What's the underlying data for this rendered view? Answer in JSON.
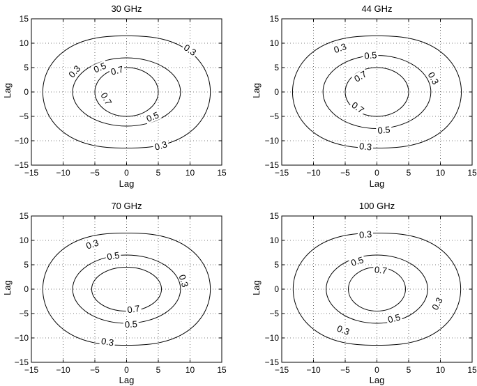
{
  "chart_data": [
    {
      "type": "contour",
      "title": "30 GHz",
      "xlabel": "Lag",
      "ylabel": "Lag",
      "xlim": [
        -15,
        15
      ],
      "ylim": [
        -15,
        15
      ],
      "xticks": [
        -15,
        -10,
        -5,
        0,
        5,
        10,
        15
      ],
      "yticks": [
        -15,
        -10,
        -5,
        0,
        5,
        10,
        15
      ],
      "grid": true,
      "levels": [
        {
          "level": 0.3,
          "label": "0.3",
          "rx": 13.2,
          "ry": 11.5,
          "label_positions": [
            [
              -8.2,
              4.2
            ],
            [
              5.4,
              -11.0
            ],
            [
              10.0,
              8.6
            ]
          ]
        },
        {
          "level": 0.5,
          "label": "0.5",
          "rx": 8.5,
          "ry": 7.0,
          "label_positions": [
            [
              -4.2,
              5.0
            ],
            [
              4.1,
              -5.1
            ]
          ]
        },
        {
          "level": 0.7,
          "label": "0.7",
          "rx": 5.0,
          "ry": 5.0,
          "label_positions": [
            [
              -1.5,
              4.4
            ],
            [
              -3.2,
              -1.4
            ]
          ]
        }
      ]
    },
    {
      "type": "contour",
      "title": "44 GHz",
      "xlabel": "Lag",
      "ylabel": "Lag",
      "xlim": [
        -15,
        15
      ],
      "ylim": [
        -15,
        15
      ],
      "xticks": [
        -15,
        -10,
        -5,
        0,
        5,
        10,
        15
      ],
      "yticks": [
        -15,
        -10,
        -5,
        0,
        5,
        10,
        15
      ],
      "grid": true,
      "levels": [
        {
          "level": 0.3,
          "label": "0.3",
          "rx": 13.3,
          "ry": 11.5,
          "label_positions": [
            [
              -5.8,
              9.0
            ],
            [
              -1.8,
              -11.2
            ],
            [
              8.9,
              2.8
            ]
          ]
        },
        {
          "level": 0.5,
          "label": "0.5",
          "rx": 8.5,
          "ry": 7.5,
          "label_positions": [
            [
              -1.0,
              7.5
            ],
            [
              1.1,
              -7.8
            ]
          ]
        },
        {
          "level": 0.7,
          "label": "0.7",
          "rx": 5.0,
          "ry": 5.0,
          "label_positions": [
            [
              -2.6,
              3.2
            ],
            [
              -3.0,
              -3.2
            ]
          ]
        }
      ]
    },
    {
      "type": "contour",
      "title": "70 GHz",
      "xlabel": "Lag",
      "ylabel": "Lag",
      "xlim": [
        -15,
        15
      ],
      "ylim": [
        -15,
        15
      ],
      "xticks": [
        -15,
        -10,
        -5,
        0,
        5,
        10,
        15
      ],
      "yticks": [
        -15,
        -10,
        -5,
        0,
        5,
        10,
        15
      ],
      "grid": true,
      "levels": [
        {
          "level": 0.3,
          "label": "0.3",
          "rx": 13.2,
          "ry": 11.5,
          "label_positions": [
            [
              -5.4,
              9.2
            ],
            [
              -3.0,
              -10.8
            ],
            [
              9.0,
              1.7
            ]
          ]
        },
        {
          "level": 0.5,
          "label": "0.5",
          "rx": 8.5,
          "ry": 7.0,
          "label_positions": [
            [
              -2.1,
              6.8
            ],
            [
              0.7,
              -7.2
            ]
          ]
        },
        {
          "level": 0.7,
          "label": "0.7",
          "rx": 5.5,
          "ry": 4.5,
          "label_positions": [
            [
              1.1,
              -4.1
            ]
          ]
        }
      ]
    },
    {
      "type": "contour",
      "title": "100 GHz",
      "xlabel": "Lag",
      "ylabel": "Lag",
      "xlim": [
        -15,
        15
      ],
      "ylim": [
        -15,
        15
      ],
      "xticks": [
        -15,
        -10,
        -5,
        0,
        5,
        10,
        15
      ],
      "yticks": [
        -15,
        -10,
        -5,
        0,
        5,
        10,
        15
      ],
      "grid": true,
      "levels": [
        {
          "level": 0.3,
          "label": "0.3",
          "rx": 13.2,
          "ry": 11.5,
          "label_positions": [
            [
              -5.3,
              -8.4
            ],
            [
              -1.8,
              11.2
            ],
            [
              9.5,
              -3.0
            ]
          ]
        },
        {
          "level": 0.5,
          "label": "0.5",
          "rx": 8.0,
          "ry": 7.0,
          "label_positions": [
            [
              -3.1,
              5.7
            ],
            [
              2.7,
              -6.0
            ]
          ]
        },
        {
          "level": 0.7,
          "label": "0.7",
          "rx": 4.5,
          "ry": 4.5,
          "label_positions": [
            [
              0.6,
              3.9
            ]
          ]
        }
      ]
    }
  ]
}
